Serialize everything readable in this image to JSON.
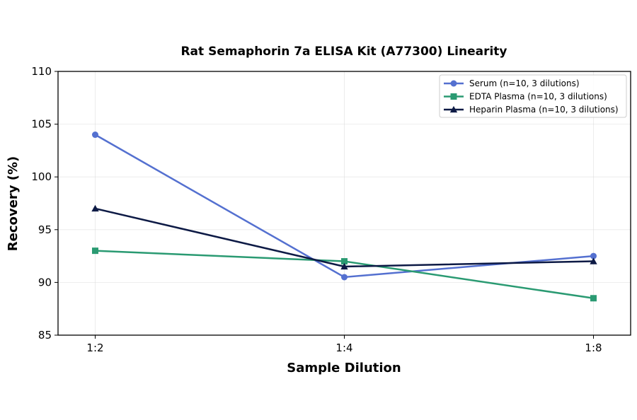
{
  "chart_data": {
    "type": "line",
    "title": "Rat Semaphorin 7a ELISA Kit (A77300) Linearity",
    "xlabel": "Sample Dilution",
    "ylabel": "Recovery (%)",
    "categories": [
      "1:2",
      "1:4",
      "1:8"
    ],
    "ylim": [
      85,
      110
    ],
    "yticks": [
      85,
      90,
      95,
      100,
      105,
      110
    ],
    "grid": true,
    "legend_position": "top-right",
    "series": [
      {
        "name": "Serum (n=10, 3 dilutions)",
        "values": [
          104,
          90.5,
          92.5
        ],
        "color": "#5470d0",
        "marker": "circle"
      },
      {
        "name": "EDTA Plasma (n=10, 3 dilutions)",
        "values": [
          93,
          92,
          88.5
        ],
        "color": "#2a9a72",
        "marker": "square"
      },
      {
        "name": "Heparin Plasma (n=10, 3 dilutions)",
        "values": [
          97,
          91.5,
          92
        ],
        "color": "#0d1a45",
        "marker": "triangle"
      }
    ]
  }
}
